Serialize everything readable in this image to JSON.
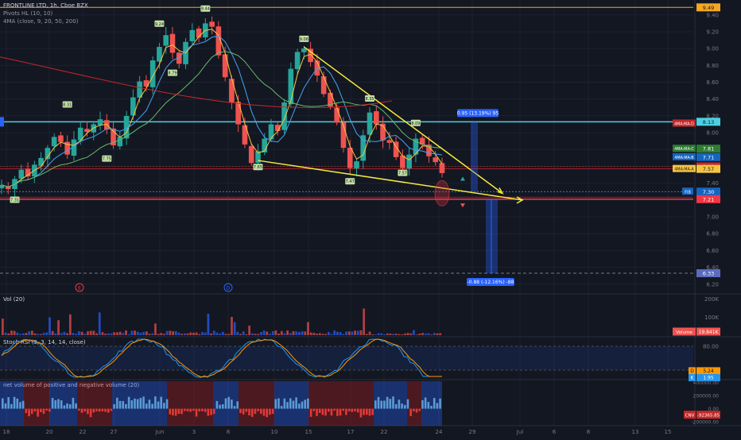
{
  "header": {
    "symbol": "FRONTLINE LTD, 1h, Cboe BZX",
    "pivots": "Pivots HL (10, 10)",
    "ma": "4MA (close, 9, 20, 50, 200)"
  },
  "colors": {
    "background": "#131722",
    "grid": "#1e2230",
    "up": "#26a69a",
    "down": "#ef5350",
    "trendline": "#f5ea3c",
    "resistance": "#4dd0e1",
    "support": "#f23645",
    "ma9": "#f5c542",
    "ma20": "#42a5f5",
    "ma50": "#66bb6a",
    "ma200": "#c62828",
    "projection": "#2962ff",
    "stoch_k": "#2196f3",
    "stoch_d": "#ff9800",
    "nv_pos": "#5b9bd5",
    "nv_neg": "#e53935"
  },
  "chart_data": {
    "type": "candlestick",
    "x_ticks": [
      "18",
      "20",
      "22",
      "27",
      "Jun",
      "3",
      "8",
      "10",
      "15",
      "17",
      "22",
      "24",
      "29",
      "Jul",
      "6",
      "8",
      "13",
      "15"
    ],
    "price_ticks": [
      "9.40",
      "9.20",
      "9.00",
      "8.80",
      "8.60",
      "8.40",
      "8.20",
      "8.00",
      "7.80",
      "7.60",
      "7.40",
      "7.20",
      "7.00",
      "6.80",
      "6.60",
      "6.40",
      "6.20"
    ],
    "ylim": [
      6.16,
      9.54
    ],
    "levels": {
      "top": 9.49,
      "resistance": 8.13,
      "support": 7.21,
      "fib": 7.3,
      "target_low": 6.33,
      "ma200": 7.57,
      "ma50": 7.81,
      "ma20": 7.71,
      "price": 7.6
    },
    "price_labels": {
      "top": "9.49",
      "resistance": "8.13",
      "support": "7.21",
      "fib": "7.30",
      "target_low": "6.33",
      "ma200": "7.57",
      "ma50": "7.81",
      "ma20": "7.71",
      "price": "7.60"
    },
    "ma_tags": {
      "ma200": "4MA:MA-D",
      "ma50": "4MA:MA-C",
      "ma20": "4MA:MA-B",
      "ma9": "4MA:MA-A"
    },
    "fib_tag": "FIB",
    "projection_up": "0.95 (13.19%) 95",
    "projection_down": "-0.88 (-12.16%) -88",
    "event_markers": [
      "E",
      "D"
    ],
    "closes": [
      7.38,
      7.33,
      7.45,
      7.56,
      7.48,
      7.62,
      7.7,
      7.82,
      7.95,
      7.89,
      7.74,
      7.92,
      8.06,
      8.01,
      8.1,
      8.16,
      8.04,
      7.85,
      7.95,
      8.2,
      8.42,
      8.61,
      8.55,
      8.86,
      9.02,
      9.16,
      8.95,
      8.82,
      9.08,
      9.22,
      9.13,
      9.3,
      9.26,
      8.92,
      8.66,
      8.36,
      8.1,
      7.86,
      7.64,
      7.78,
      7.93,
      8.1,
      8.02,
      8.36,
      8.76,
      8.96,
      9.0,
      8.84,
      8.68,
      8.46,
      8.31,
      8.12,
      7.82,
      7.58,
      7.66,
      7.97,
      8.24,
      8.1,
      7.91,
      7.88,
      7.71,
      7.58,
      7.74,
      7.93,
      7.86,
      7.72,
      7.65,
      7.52
    ],
    "pivot_labels": [
      {
        "i": 2,
        "price": 7.25,
        "high": false,
        "text": "7.31"
      },
      {
        "i": 10,
        "price": 8.28,
        "high": true,
        "text": "8.31"
      },
      {
        "i": 16,
        "price": 7.74,
        "high": false,
        "text": "7.75"
      },
      {
        "i": 24,
        "price": 9.24,
        "high": true,
        "text": "9.24"
      },
      {
        "i": 26,
        "price": 8.76,
        "high": false,
        "text": "8.79"
      },
      {
        "i": 31,
        "price": 9.42,
        "high": true,
        "text": "9.44"
      },
      {
        "i": 39,
        "price": 7.64,
        "high": false,
        "text": "7.65"
      },
      {
        "i": 46,
        "price": 9.06,
        "high": true,
        "text": "9.06"
      },
      {
        "i": 53,
        "price": 7.47,
        "high": false,
        "text": "7.47"
      },
      {
        "i": 56,
        "price": 8.35,
        "high": true,
        "text": "8.35"
      },
      {
        "i": 61,
        "price": 7.57,
        "high": false,
        "text": "7.57"
      },
      {
        "i": 63,
        "price": 8.06,
        "high": true,
        "text": "8.09"
      }
    ],
    "volume": {
      "label": "Vol (20)",
      "ticks": [
        "200K",
        "100K"
      ],
      "ylim": [
        0,
        220000
      ],
      "current_tag": "Volume",
      "current_value": "19.841K",
      "current": 19841
    },
    "stoch": {
      "label": "Stoch RSI (3, 3, 14, 14, close)",
      "ticks": [
        "80.00",
        "20.00"
      ],
      "ylim": [
        0,
        100
      ],
      "k_label": "K",
      "k_value": "1.95",
      "d_label": "D",
      "d_value": "5.24",
      "k": 1.95,
      "d": 5.24
    },
    "net_volume": {
      "label": "net volume of positive and negative volume (20)",
      "ticks": [
        "400000.00",
        "200000.00",
        "0.00",
        "-200000.00"
      ],
      "ylim": [
        -260000,
        420000
      ],
      "value_tag": "CNV",
      "value_label": "-92365.85",
      "value": -92365.85
    }
  }
}
